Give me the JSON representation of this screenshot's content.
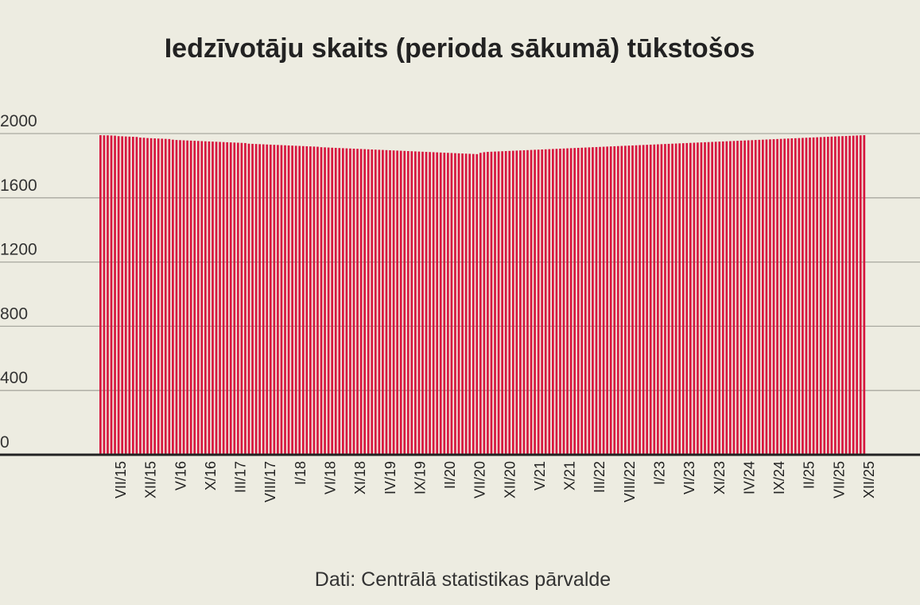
{
  "chart_data": {
    "type": "bar",
    "title": "Iedzīvotāju skaits (perioda sākumā) tūkstošos",
    "xlabel": "",
    "ylabel": "",
    "source": "Dati: Centrālā statistikas pārvalde",
    "ylim": [
      0,
      2000
    ],
    "yticks": [
      0,
      400,
      800,
      1200,
      1600,
      2000
    ],
    "grid": true,
    "legend": "none",
    "period_start": "VII/15",
    "period_end": "XII/25",
    "series": [
      {
        "name": "Iedzīvotāju skaits",
        "color": "#d7173f",
        "values": [
          1990,
          1989,
          1989,
          1988,
          1987,
          1984,
          1983,
          1982,
          1981,
          1980,
          1979,
          1975,
          1974,
          1972,
          1971,
          1970,
          1969,
          1968,
          1967,
          1966,
          1962,
          1960,
          1959,
          1958,
          1957,
          1956,
          1955,
          1954,
          1953,
          1952,
          1951,
          1950,
          1949,
          1948,
          1947,
          1946,
          1945,
          1944,
          1943,
          1942,
          1941,
          1937,
          1936,
          1935,
          1934,
          1933,
          1932,
          1931,
          1930,
          1929,
          1928,
          1927,
          1926,
          1925,
          1924,
          1923,
          1922,
          1921,
          1920,
          1919,
          1918,
          1915,
          1914,
          1913,
          1912,
          1911,
          1910,
          1909,
          1908,
          1907,
          1906,
          1905,
          1904,
          1903,
          1902,
          1901,
          1900,
          1899,
          1898,
          1897,
          1896,
          1895,
          1894,
          1893,
          1892,
          1891,
          1890,
          1889,
          1888,
          1887,
          1886,
          1885,
          1884,
          1883,
          1882,
          1881,
          1880,
          1879,
          1878,
          1877,
          1876,
          1875,
          1874,
          1873,
          1872,
          1880,
          1884,
          1886,
          1887,
          1888,
          1889,
          1890,
          1891,
          1892,
          1893,
          1894,
          1895,
          1896,
          1897,
          1898,
          1899,
          1900,
          1901,
          1902,
          1903,
          1904,
          1905,
          1906,
          1907,
          1908,
          1909,
          1910,
          1911,
          1912,
          1913,
          1914,
          1915,
          1916,
          1917,
          1918,
          1919,
          1920,
          1921,
          1922,
          1923,
          1924,
          1925,
          1926,
          1927,
          1928,
          1929,
          1930,
          1931,
          1932,
          1933,
          1934,
          1935,
          1936,
          1937,
          1938,
          1939,
          1940,
          1941,
          1942,
          1943,
          1944,
          1945,
          1946,
          1947,
          1948,
          1949,
          1950,
          1951,
          1952,
          1953,
          1954,
          1955,
          1956,
          1957,
          1958,
          1959,
          1960,
          1961,
          1962,
          1963,
          1964,
          1965,
          1966,
          1967,
          1968,
          1969,
          1970,
          1971,
          1972,
          1973,
          1974,
          1975,
          1976,
          1977,
          1978,
          1979,
          1980,
          1981,
          1982,
          1983,
          1984,
          1985,
          1986,
          1987,
          1988,
          1989,
          1990
        ]
      }
    ],
    "xtick_labels": [
      "VII/15",
      "XII/15",
      "V/16",
      "X/16",
      "III/17",
      "VIII/17",
      "I/18",
      "VI/18",
      "XI/18",
      "IV/19",
      "IX/19",
      "II/20",
      "VII/20",
      "XII/20",
      "V/21",
      "X/21",
      "III/22",
      "VIII/22",
      "I/23",
      "VI/23",
      "XI/23",
      "IV/24",
      "IX/24",
      "II/25",
      "VII/25",
      "XII/25"
    ]
  }
}
